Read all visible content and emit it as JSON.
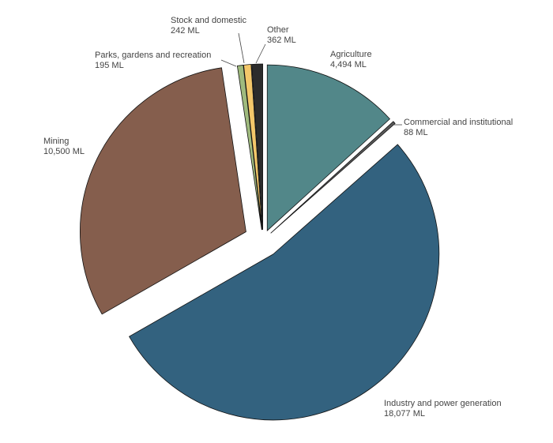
{
  "chart_data": {
    "type": "pie",
    "unit": "ML",
    "slices": [
      {
        "name": "Agriculture",
        "value": 4494,
        "display": "4,494 ML",
        "color": "#528789"
      },
      {
        "name": "Commercial and institutional",
        "value": 88,
        "display": "88 ML",
        "color": "#5a5a5a"
      },
      {
        "name": "Industry and power generation",
        "value": 18077,
        "display": "18,077 ML",
        "color": "#33627f"
      },
      {
        "name": "Mining",
        "value": 10500,
        "display": "10,500 ML",
        "color": "#855e4d"
      },
      {
        "name": "Parks, gardens and recreation",
        "value": 195,
        "display": "195 ML",
        "color": "#9fba7e"
      },
      {
        "name": "Stock and domestic",
        "value": 242,
        "display": "242 ML",
        "color": "#f3c76a"
      },
      {
        "name": "Other",
        "value": 362,
        "display": "362 ML",
        "color": "#2c2c2c"
      }
    ]
  }
}
